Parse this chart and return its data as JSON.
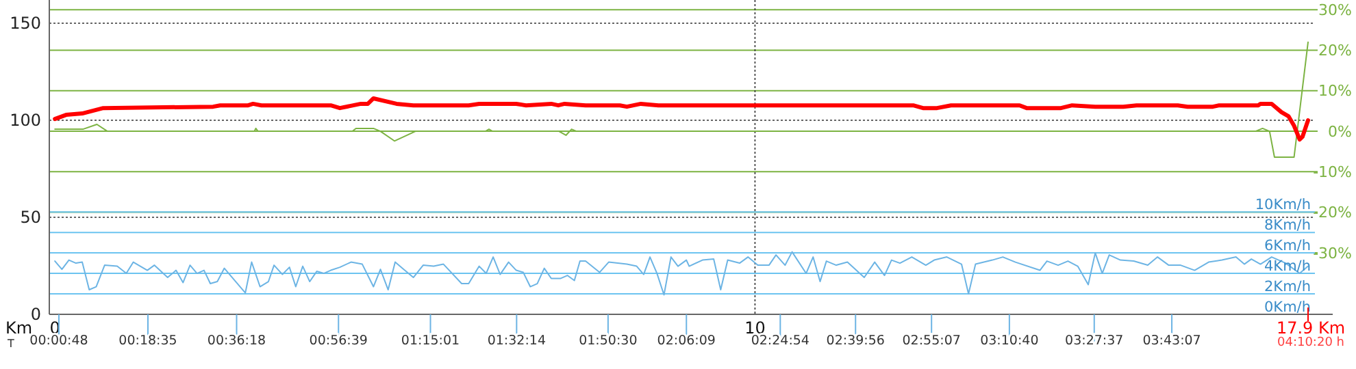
{
  "chart_data": {
    "type": "line",
    "xlabel": "Km",
    "x2label": "T",
    "xlim": [
      -0.08,
      17.9
    ],
    "xticks": [
      0,
      10
    ],
    "x2lim": [
      -0.0186,
      4.1722
    ],
    "x2ticks": [
      {
        "value": 0.0133,
        "label": "00:00:48"
      },
      {
        "value": 0.3097,
        "label": "00:18:35"
      },
      {
        "value": 0.605,
        "label": "00:36:18"
      },
      {
        "value": 0.9442,
        "label": "00:56:39"
      },
      {
        "value": 1.2503,
        "label": "01:15:01"
      },
      {
        "value": 1.5372,
        "label": "01:32:14"
      },
      {
        "value": 1.8417,
        "label": "01:50:30"
      },
      {
        "value": 2.1025,
        "label": "02:06:09"
      },
      {
        "value": 2.415,
        "label": "02:24:54"
      },
      {
        "value": 2.6656,
        "label": "02:39:56"
      },
      {
        "value": 2.9186,
        "label": "02:55:07"
      },
      {
        "value": 3.1778,
        "label": "03:10:40"
      },
      {
        "value": 3.4603,
        "label": "03:27:37"
      },
      {
        "value": 3.7186,
        "label": "03:43:07"
      }
    ],
    "ylim": [
      0,
      162
    ],
    "yticks": [
      0,
      50,
      100,
      150
    ],
    "y2lim": [
      -45.2,
      32.4
    ],
    "y2ticks": [
      {
        "value": -30,
        "label": "-30%"
      },
      {
        "value": -20,
        "label": "-20%"
      },
      {
        "value": -10,
        "label": "-10%"
      },
      {
        "value": 0,
        "label": "0%"
      },
      {
        "value": 10,
        "label": "10%"
      },
      {
        "value": 20,
        "label": "20%"
      },
      {
        "value": 30,
        "label": "30%"
      }
    ],
    "y3lim": [
      0,
      30.7
    ],
    "y3ticks": [
      {
        "value": 0,
        "label": "0Km/h"
      },
      {
        "value": 2,
        "label": "2Km/h"
      },
      {
        "value": 4,
        "label": "4Km/h"
      },
      {
        "value": 6,
        "label": "6Km/h"
      },
      {
        "value": 8,
        "label": "8Km/h"
      },
      {
        "value": 10,
        "label": "10Km/h"
      }
    ],
    "grid": true,
    "series": [
      {
        "color": "#7cb342",
        "axis": "y2",
        "x": [
          0,
          0.4,
          0.6,
          0.75,
          2.85,
          2.87,
          2.9,
          4.25,
          4.3,
          4.55,
          4.65,
          4.85,
          5.15,
          6.15,
          6.2,
          6.25,
          7.2,
          7.3,
          7.38,
          7.45,
          17.15,
          17.25,
          17.35,
          17.42,
          17.7,
          17.9
        ],
        "values": [
          0.5,
          0.5,
          1.7,
          0,
          0,
          0.7,
          0,
          0,
          0.7,
          0.7,
          0,
          -2.4,
          0,
          0,
          0.5,
          0,
          0,
          -1.0,
          0.5,
          0,
          0,
          0.7,
          0,
          -6.4,
          -6.4,
          22
        ]
      },
      {
        "color": "#6cb4e4",
        "axis": "y3",
        "x": [
          0,
          0.1,
          0.2,
          0.3,
          0.39,
          0.49,
          0.59,
          0.71,
          0.89,
          1.02,
          1.12,
          1.32,
          1.42,
          1.61,
          1.73,
          1.83,
          1.93,
          2.03,
          2.13,
          2.22,
          2.32,
          2.42,
          2.72,
          2.81,
          2.93,
          3.05,
          3.13,
          3.25,
          3.35,
          3.44,
          3.54,
          3.64,
          3.74,
          3.84,
          3.94,
          4.07,
          4.23,
          4.39,
          4.55,
          4.65,
          4.76,
          4.86,
          4.98,
          5.12,
          5.26,
          5.41,
          5.55,
          5.81,
          5.91,
          6.06,
          6.16,
          6.26,
          6.36,
          6.48,
          6.59,
          6.69,
          6.79,
          6.89,
          6.99,
          7.09,
          7.22,
          7.32,
          7.42,
          7.5,
          7.58,
          7.78,
          7.91,
          8.17,
          8.31,
          8.41,
          8.5,
          8.6,
          8.7,
          8.8,
          8.9,
          9.02,
          9.06,
          9.25,
          9.41,
          9.51,
          9.61,
          9.78,
          9.9,
          10.04,
          10.2,
          10.3,
          10.43,
          10.53,
          10.73,
          10.83,
          10.93,
          11.02,
          11.16,
          11.32,
          11.56,
          11.71,
          11.85,
          11.95,
          12.07,
          12.24,
          12.44,
          12.56,
          12.74,
          12.95,
          13.05,
          13.15,
          13.39,
          13.54,
          13.72,
          14.07,
          14.17,
          14.33,
          14.47,
          14.61,
          14.76,
          14.86,
          14.96,
          15.06,
          15.22,
          15.41,
          15.61,
          15.75,
          15.91,
          16.08,
          16.28,
          16.48,
          16.67,
          16.87,
          16.99,
          17.09,
          17.22,
          17.38,
          17.58,
          17.78,
          17.9
        ],
        "values": [
          5.2,
          4.4,
          5.3,
          5.0,
          5.1,
          2.4,
          2.7,
          4.8,
          4.7,
          4.0,
          5.1,
          4.3,
          4.8,
          3.6,
          4.3,
          3.1,
          4.8,
          4.0,
          4.3,
          3.0,
          3.2,
          4.5,
          2.1,
          5.1,
          2.7,
          3.2,
          4.8,
          3.9,
          4.6,
          2.7,
          4.7,
          3.2,
          4.2,
          4.0,
          4.3,
          4.6,
          5.1,
          4.9,
          2.7,
          4.4,
          2.4,
          5.1,
          4.4,
          3.6,
          4.8,
          4.7,
          4.9,
          3.0,
          3.0,
          4.7,
          4.0,
          5.6,
          3.9,
          5.1,
          4.3,
          4.1,
          2.7,
          3.0,
          4.5,
          3.5,
          3.5,
          3.8,
          3.3,
          5.2,
          5.2,
          4.1,
          5.1,
          4.9,
          4.7,
          3.9,
          5.6,
          4.0,
          1.9,
          5.6,
          4.7,
          5.3,
          4.7,
          5.3,
          5.4,
          2.4,
          5.3,
          5.0,
          5.6,
          4.8,
          4.8,
          5.8,
          4.8,
          6.1,
          4.0,
          5.6,
          3.2,
          5.2,
          4.8,
          5.1,
          3.6,
          5.1,
          3.8,
          5.3,
          5.0,
          5.6,
          4.8,
          5.3,
          5.6,
          4.9,
          2.0,
          4.9,
          5.3,
          5.6,
          5.1,
          4.3,
          5.2,
          4.8,
          5.2,
          4.7,
          2.9,
          6.0,
          4.0,
          5.8,
          5.3,
          5.2,
          4.8,
          5.6,
          4.8,
          4.8,
          4.3,
          5.1,
          5.3,
          5.6,
          4.9,
          5.4,
          4.9,
          5.6,
          5.0,
          4.0,
          4.7
        ]
      },
      {
        "color": "#ff0000",
        "x": [
          0,
          0.16,
          0.39,
          0.69,
          2.26,
          2.36,
          2.76,
          2.83,
          2.95,
          3.94,
          4.07,
          4.37,
          4.47,
          4.55,
          4.88,
          5.12,
          5.91,
          6.06,
          6.59,
          6.73,
          7.09,
          7.19,
          7.28,
          7.58,
          8.07,
          8.17,
          8.37,
          8.62,
          12.26,
          12.4,
          12.6,
          12.8,
          13.78,
          13.88,
          14.37,
          14.53,
          14.86,
          15.26,
          15.45,
          16.04,
          16.18,
          16.54,
          16.63,
          17.19,
          17.22,
          17.38,
          17.52,
          17.62,
          17.7,
          17.78,
          17.82,
          17.9
        ],
        "values": [
          100.7,
          102.8,
          103.5,
          106.3,
          107.0,
          107.7,
          107.7,
          108.5,
          107.7,
          107.7,
          106.3,
          108.5,
          108.5,
          111.3,
          108.5,
          107.7,
          107.7,
          108.5,
          108.5,
          107.7,
          108.5,
          107.7,
          108.5,
          107.7,
          107.7,
          107.0,
          108.5,
          107.7,
          107.7,
          106.3,
          106.3,
          107.7,
          107.7,
          106.3,
          106.3,
          107.7,
          107.0,
          107.0,
          107.7,
          107.7,
          107.0,
          107.0,
          107.7,
          107.7,
          108.5,
          108.5,
          104.2,
          102.1,
          97.2,
          90.1,
          91.5,
          100
        ]
      }
    ],
    "annotations": [
      "17.9 Km",
      "04:10:20 h"
    ]
  }
}
